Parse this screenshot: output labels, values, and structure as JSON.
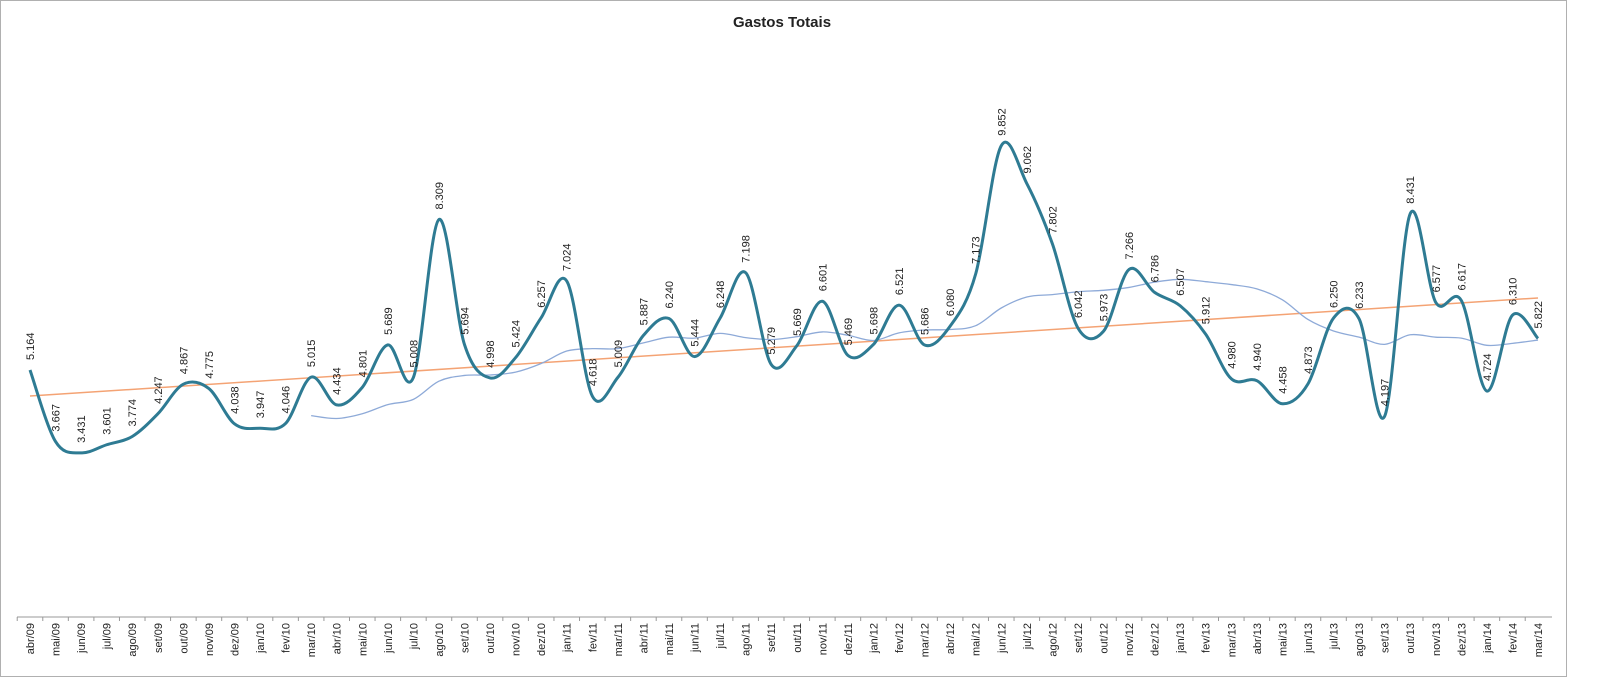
{
  "chart_data": {
    "type": "line",
    "title": "Gastos Totais",
    "categories": [
      "abr/09",
      "mai/09",
      "jun/09",
      "jul/09",
      "ago/09",
      "set/09",
      "out/09",
      "nov/09",
      "dez/09",
      "jan/10",
      "fev/10",
      "mar/10",
      "abr/10",
      "mai/10",
      "jun/10",
      "jul/10",
      "ago/10",
      "set/10",
      "out/10",
      "nov/10",
      "dez/10",
      "jan/11",
      "fev/11",
      "mar/11",
      "abr/11",
      "mai/11",
      "jun/11",
      "jul/11",
      "ago/11",
      "set/11",
      "out/11",
      "nov/11",
      "dez/11",
      "jan/12",
      "fev/12",
      "mar/12",
      "abr/12",
      "mai/12",
      "jun/12",
      "jul/12",
      "ago/12",
      "set/12",
      "out/12",
      "nov/12",
      "dez/12",
      "jan/13",
      "fev/13",
      "mar/13",
      "abr/13",
      "mai/13",
      "jun/13",
      "jul/13",
      "ago/13",
      "set/13",
      "out/13",
      "nov/13",
      "dez/13",
      "jan/14",
      "fev/14",
      "mar/14"
    ],
    "series": [
      {
        "color": "#2e7b93",
        "values": [
          5.164,
          3.667,
          3.431,
          3.601,
          3.774,
          4.247,
          4.867,
          4.775,
          4.038,
          3.947,
          4.046,
          5.015,
          4.434,
          4.801,
          5.689,
          5.008,
          8.309,
          5.694,
          4.998,
          5.424,
          6.257,
          7.024,
          4.618,
          5.009,
          5.887,
          6.24,
          5.444,
          6.248,
          7.198,
          5.279,
          5.669,
          6.601,
          5.469,
          5.698,
          6.521,
          5.686,
          6.08,
          7.173,
          9.852,
          9.062,
          7.802,
          6.042,
          5.973,
          7.266,
          6.786,
          6.507,
          5.912,
          4.98,
          4.94,
          4.458,
          4.873,
          6.25,
          6.233,
          4.197,
          8.431,
          6.577,
          6.617,
          4.724,
          6.31,
          5.822
        ],
        "value_labels": [
          "5.164",
          "3.667",
          "3.431",
          "3.601",
          "3.774",
          "4.247",
          "4.867",
          "4.775",
          "4.038",
          "3.947",
          "4.046",
          "5.015",
          "4.434",
          "4.801",
          "5.689",
          "5.008",
          "8.309",
          "5.694",
          "4.998",
          "5.424",
          "6.257",
          "7.024",
          "4.618",
          "5.009",
          "5.887",
          "6.240",
          "5.444",
          "6.248",
          "7.198",
          "5.279",
          "5.669",
          "6.601",
          "5.469",
          "5.698",
          "6.521",
          "5.686",
          "6.080",
          "7.173",
          "9.852",
          "9.062",
          "7.802",
          "6.042",
          "5.973",
          "7.266",
          "6.786",
          "6.507",
          "5.912",
          "4.980",
          "4.940",
          "4.458",
          "4.873",
          "6.250",
          "6.233",
          "4.197",
          "8.431",
          "6.577",
          "6.617",
          "4.724",
          "6.310",
          "5.822"
        ]
      }
    ],
    "moving_average": {
      "color": "#8eaad8",
      "values": [
        null,
        null,
        null,
        null,
        null,
        null,
        null,
        null,
        null,
        null,
        null,
        4.21,
        4.15,
        4.25,
        4.44,
        4.55,
        4.93,
        5.05,
        5.06,
        5.12,
        5.3,
        5.56,
        5.61,
        5.61,
        5.73,
        5.85,
        5.83,
        5.93,
        5.84,
        5.8,
        5.86,
        5.96,
        5.89,
        5.78,
        5.94,
        6.0,
        6.01,
        6.09,
        6.46,
        6.69,
        6.74,
        6.8,
        6.83,
        6.89,
        7.0,
        7.06,
        7.01,
        6.95,
        6.86,
        6.63,
        6.22,
        5.98,
        5.85,
        5.7,
        5.9,
        5.85,
        5.83,
        5.68,
        5.72,
        5.79
      ]
    },
    "trendline": {
      "color": "#f4a374",
      "values": [
        4.62,
        6.67
      ]
    },
    "ylim": [
      0,
      12
    ]
  }
}
